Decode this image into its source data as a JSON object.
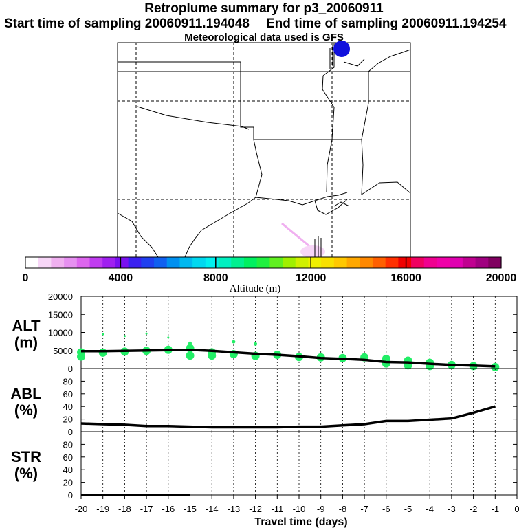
{
  "header": {
    "title": "Retroplume summary for p3_20060911",
    "start_label": "Start time of sampling 20060911.194048",
    "end_label": "End time of sampling 20060911.194254",
    "met_label": "Meteorological data used is GFS"
  },
  "colors": {
    "alt_dots": "#22ee66",
    "line": "#000000",
    "source_marker": "#1111dd",
    "plume_near": "#e6a0e6"
  },
  "colorbar": {
    "title": "Altitude (m)",
    "tick_labels": [
      "0",
      "4000",
      "8000",
      "12000",
      "16000",
      "20000"
    ],
    "colors": [
      "#ffffff",
      "#f7d6f7",
      "#f0b0f0",
      "#e690f0",
      "#dd66ee",
      "#c03cf0",
      "#a020f0",
      "#7a10f0",
      "#3a20f0",
      "#2040f0",
      "#1060f0",
      "#0090f0",
      "#00b8f0",
      "#00d8f0",
      "#00f0f0",
      "#00f0c0",
      "#00f090",
      "#00f060",
      "#20f040",
      "#60f020",
      "#a0f000",
      "#d0f000",
      "#f0f000",
      "#f8e000",
      "#ffc800",
      "#ffa800",
      "#ff8800",
      "#ff6000",
      "#ff3000",
      "#f00000",
      "#f00060",
      "#f00090",
      "#f000a8",
      "#e000b0",
      "#c00090",
      "#a00080",
      "#800060"
    ]
  },
  "chart_data": [
    {
      "type": "scatter",
      "name": "ALT",
      "ylabel": "ALT\n(m)",
      "ylim": [
        0,
        20000
      ],
      "yticks": [
        0,
        5000,
        10000,
        15000,
        20000
      ],
      "x": [
        -20,
        -19,
        -18,
        -17,
        -16,
        -15,
        -14,
        -13,
        -12,
        -11,
        -10,
        -9,
        -8,
        -7,
        -6,
        -5,
        -4,
        -3,
        -2,
        -1
      ],
      "mean_line": [
        4800,
        4800,
        4900,
        5000,
        5100,
        5200,
        4900,
        4500,
        4100,
        3800,
        3400,
        2900,
        2700,
        2400,
        1800,
        1700,
        1300,
        1000,
        800,
        600
      ],
      "dots": [
        {
          "x": -20,
          "y": 4500
        },
        {
          "x": -20,
          "y": 3300
        },
        {
          "x": -19,
          "y": 4400
        },
        {
          "x": -19,
          "y": 9500
        },
        {
          "x": -18,
          "y": 4700
        },
        {
          "x": -18,
          "y": 9000
        },
        {
          "x": -17,
          "y": 4900
        },
        {
          "x": -17,
          "y": 9700
        },
        {
          "x": -16,
          "y": 5200
        },
        {
          "x": -16,
          "y": 8600
        },
        {
          "x": -15,
          "y": 5600
        },
        {
          "x": -15,
          "y": 3600
        },
        {
          "x": -15,
          "y": 7000
        },
        {
          "x": -14,
          "y": 4500
        },
        {
          "x": -14,
          "y": 3600
        },
        {
          "x": -13,
          "y": 4000
        },
        {
          "x": -13,
          "y": 7400
        },
        {
          "x": -12,
          "y": 3500
        },
        {
          "x": -12,
          "y": 6800
        },
        {
          "x": -11,
          "y": 3800
        },
        {
          "x": -10,
          "y": 3200
        },
        {
          "x": -9,
          "y": 3100
        },
        {
          "x": -8,
          "y": 2900
        },
        {
          "x": -7,
          "y": 3100
        },
        {
          "x": -6,
          "y": 2700
        },
        {
          "x": -6,
          "y": 1400
        },
        {
          "x": -5,
          "y": 2200
        },
        {
          "x": -5,
          "y": 900
        },
        {
          "x": -4,
          "y": 1600
        },
        {
          "x": -4,
          "y": 700
        },
        {
          "x": -3,
          "y": 1000
        },
        {
          "x": -2,
          "y": 700
        },
        {
          "x": -1,
          "y": 400
        }
      ]
    },
    {
      "type": "line",
      "name": "ABL",
      "ylabel": "ABL\n(%)",
      "ylim": [
        0,
        100
      ],
      "yticks": [
        0,
        20,
        40,
        60,
        80
      ],
      "x": [
        -20,
        -19,
        -18,
        -17,
        -16,
        -15,
        -14,
        -13,
        -12,
        -11,
        -10,
        -9,
        -8,
        -7,
        -6,
        -5,
        -4,
        -3,
        -2,
        -1
      ],
      "values": [
        13,
        12,
        11,
        9,
        9,
        8,
        7,
        7,
        7,
        7,
        8,
        8,
        10,
        12,
        17,
        17,
        19,
        21,
        30,
        40
      ]
    },
    {
      "type": "line",
      "name": "STR",
      "ylabel": "STR\n(%)",
      "ylim": [
        0,
        100
      ],
      "yticks": [
        0,
        20,
        40,
        60,
        80
      ],
      "x": [
        -20,
        -19,
        -18,
        -17,
        -16,
        -15
      ],
      "values": [
        0,
        0,
        0,
        0,
        0,
        0
      ]
    }
  ],
  "xaxis": {
    "title": "Travel time (days)",
    "tick_labels": [
      "-20",
      "-19",
      "-18",
      "-17",
      "-16",
      "-15",
      "-14",
      "-13",
      "-12",
      "-11",
      "-10",
      "-9",
      "-8",
      "-7",
      "-6",
      "-5",
      "-4",
      "-3",
      "-2",
      "-1",
      "0"
    ]
  }
}
